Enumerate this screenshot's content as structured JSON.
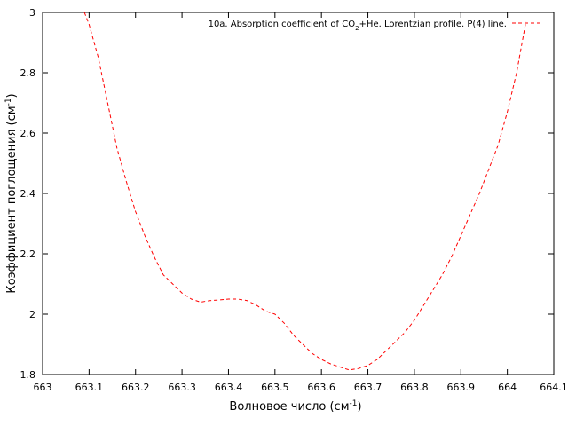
{
  "chart_data": {
    "type": "line",
    "xlabel": "Волновое число (см",
    "xlabel_sup": "-1",
    "xlabel_end": ")",
    "ylabel": "Коэффициент поглощения (см",
    "ylabel_sup": "-1",
    "ylabel_end": ")",
    "xlim": [
      663,
      664.1
    ],
    "ylim": [
      1.8,
      3.0
    ],
    "xticks": [
      "663",
      "663.1",
      "663.2",
      "663.3",
      "663.4",
      "663.5",
      "663.6",
      "663.7",
      "663.8",
      "663.9",
      "664",
      "664.1"
    ],
    "yticks": [
      "1.8",
      "2",
      "2.2",
      "2.4",
      "2.6",
      "2.8",
      "3"
    ],
    "grid": false,
    "legend_position": "top-right",
    "series": [
      {
        "name_parts": [
          "10a. Absorption coefficient of CO",
          "2",
          "+He. Lorentzian profile. P(4) line."
        ],
        "color": "#ff0000",
        "dash": "dashed",
        "x": [
          663.09,
          663.1,
          663.12,
          663.14,
          663.16,
          663.18,
          663.2,
          663.22,
          663.24,
          663.26,
          663.28,
          663.3,
          663.32,
          663.34,
          663.36,
          663.38,
          663.4,
          663.42,
          663.44,
          663.46,
          663.48,
          663.5,
          663.52,
          663.54,
          663.56,
          663.58,
          663.6,
          663.62,
          663.64,
          663.66,
          663.68,
          663.7,
          663.72,
          663.74,
          663.76,
          663.78,
          663.8,
          663.82,
          663.84,
          663.86,
          663.88,
          663.9,
          663.92,
          663.94,
          663.96,
          663.98,
          664.0,
          664.02,
          664.04
        ],
        "y": [
          3.0,
          2.96,
          2.85,
          2.7,
          2.55,
          2.44,
          2.34,
          2.26,
          2.19,
          2.13,
          2.1,
          2.07,
          2.05,
          2.04,
          2.045,
          2.047,
          2.05,
          2.05,
          2.045,
          2.03,
          2.01,
          2.0,
          1.97,
          1.93,
          1.9,
          1.87,
          1.85,
          1.835,
          1.825,
          1.815,
          1.82,
          1.83,
          1.85,
          1.88,
          1.91,
          1.94,
          1.98,
          2.03,
          2.08,
          2.13,
          2.19,
          2.26,
          2.33,
          2.4,
          2.48,
          2.56,
          2.67,
          2.8,
          2.97
        ]
      }
    ]
  }
}
